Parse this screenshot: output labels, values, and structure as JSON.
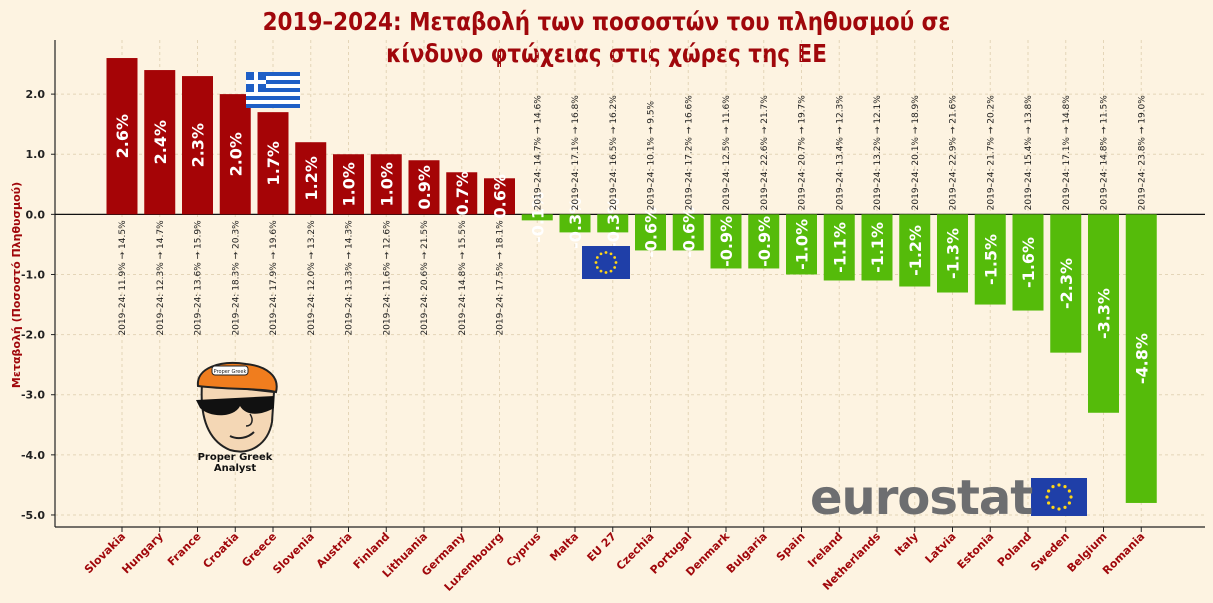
{
  "title_line1": "2019–2024: Μεταβολή των ποσοστών του πληθυσμού σε",
  "title_line2": "κίνδυνο φτώχειας στις χώρες της ΕΕ",
  "eurostat_text": "eurostat",
  "logo_caption": "Proper Greek Analyst",
  "logo_badge": "Proper Greek",
  "colors": {
    "positive": "#a50406",
    "negative": "#55bb0a",
    "title": "#a0070b",
    "background": "#fdf3e1",
    "grid": "#e4d5b8",
    "eu_blue": "#1f3fa8",
    "eu_star": "#ffd617",
    "greek_blue": "#1f5fc6"
  },
  "icons": [
    "greek-flag-icon",
    "eu-flag-icon",
    "eurostat-eu-flag-icon",
    "analyst-cartoon-icon"
  ],
  "chart_data": {
    "type": "bar",
    "ylabel": "Μεταβολή (Ποσοστό Πληθυσμού)",
    "ylim": [
      -5.2,
      2.9
    ],
    "yticks": [
      2.0,
      1.0,
      0.0,
      -1.0,
      -2.0,
      -3.0,
      -4.0,
      -5.0
    ],
    "ytick_labels": [
      "2.0",
      "1.0",
      "0.0",
      "-1.0",
      "-2.0",
      "-3.0",
      "-4.0",
      "-5.0"
    ],
    "grid": true,
    "categories": [
      "Slovakia",
      "Hungary",
      "France",
      "Croatia",
      "Greece",
      "Slovenia",
      "Austria",
      "Finland",
      "Lithuania",
      "Germany",
      "Luxembourg",
      "Cyprus",
      "Malta",
      "EU 27",
      "Czechia",
      "Portugal",
      "Denmark",
      "Bulgaria",
      "Spain",
      "Ireland",
      "Netherlands",
      "Italy",
      "Latvia",
      "Estonia",
      "Poland",
      "Sweden",
      "Belgium",
      "Romania"
    ],
    "values": [
      2.6,
      2.4,
      2.3,
      2.0,
      1.7,
      1.2,
      1.0,
      1.0,
      0.9,
      0.7,
      0.6,
      -0.1,
      -0.3,
      -0.3,
      -0.6,
      -0.6,
      -0.9,
      -0.9,
      -1.0,
      -1.1,
      -1.1,
      -1.2,
      -1.3,
      -1.5,
      -1.6,
      -2.3,
      -3.3,
      -4.8
    ],
    "value_labels": [
      "2.6%",
      "2.4%",
      "2.3%",
      "2.0%",
      "1.7%",
      "1.2%",
      "1.0%",
      "1.0%",
      "0.9%",
      "0.7%",
      "0.6%",
      "-0.1%",
      "-0.3%",
      "-0.3%",
      "-0.6%",
      "-0.6%",
      "-0.9%",
      "-0.9%",
      "-1.0%",
      "-1.1%",
      "-1.1%",
      "-1.2%",
      "-1.3%",
      "-1.5%",
      "-1.6%",
      "-2.3%",
      "-3.3%",
      "-4.8%"
    ],
    "annotations": [
      "2019–24: 11.9% → 14.5%",
      "2019–24: 12.3% → 14.7%",
      "2019–24: 13.6% → 15.9%",
      "2019–24: 18.3% → 20.3%",
      "2019–24: 17.9% → 19.6%",
      "2019–24: 12.0% → 13.2%",
      "2019–24: 13.3% → 14.3%",
      "2019–24: 11.6% → 12.6%",
      "2019–24: 20.6% → 21.5%",
      "2019–24: 14.8% → 15.5%",
      "2019–24: 17.5% → 18.1%",
      "2019–24: 14.7% → 14.6%",
      "2019–24: 17.1% → 16.8%",
      "2019–24: 16.5% → 16.2%",
      "2019–24: 10.1% → 9.5%",
      "2019–24: 17.2% → 16.6%",
      "2019–24: 12.5% → 11.6%",
      "2019–24: 22.6% → 21.7%",
      "2019–24: 20.7% → 19.7%",
      "2019–24: 13.4% → 12.3%",
      "2019–24: 13.2% → 12.1%",
      "2019–24: 20.1% → 18.9%",
      "2019–24: 22.9% → 21.6%",
      "2019–24: 21.7% → 20.2%",
      "2019–24: 15.4% → 13.8%",
      "2019–24: 17.1% → 14.8%",
      "2019–24: 14.8% → 11.5%",
      "2019–24: 23.8% → 19.0%"
    ]
  }
}
